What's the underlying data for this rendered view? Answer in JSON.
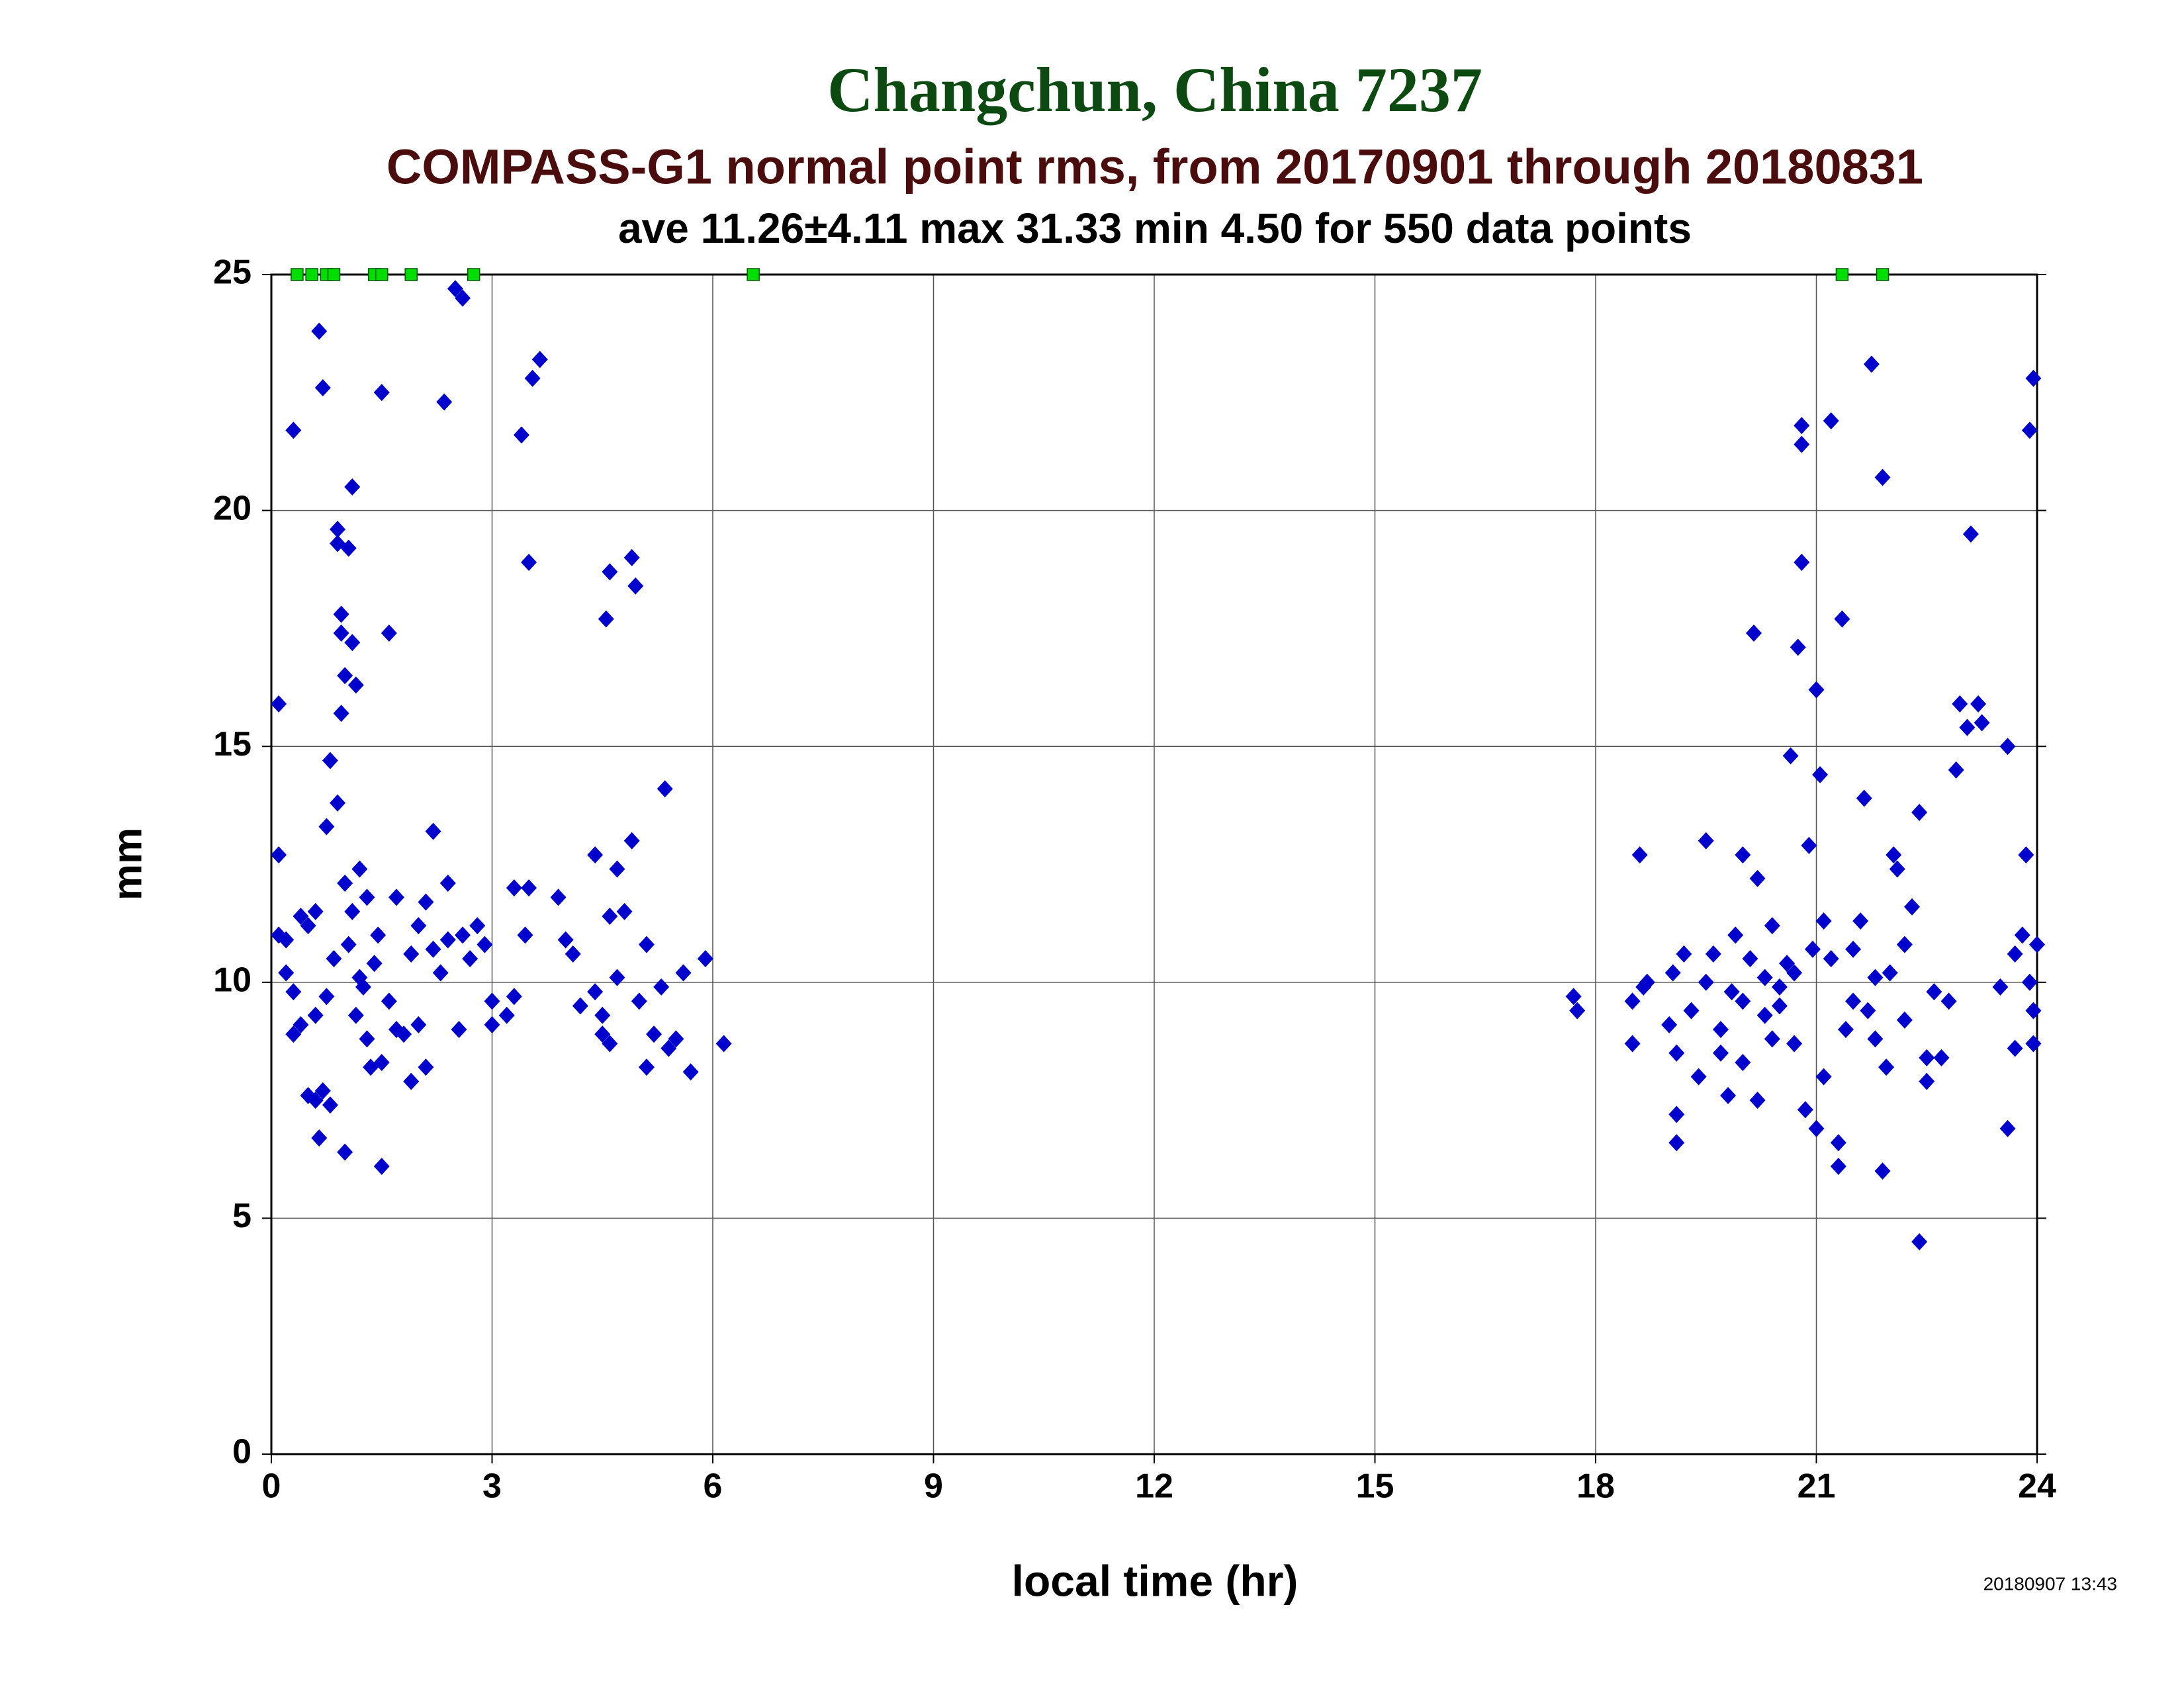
{
  "chart_data": {
    "type": "scatter",
    "title": "Changchun, China 7237",
    "subtitle": "COMPASS-G1 normal point rms, from 20170901 through 20180831",
    "stats": "ave 11.26±4.11 max 31.33 min 4.50 for 550 data points",
    "xlabel": "local time (hr)",
    "ylabel": "mm",
    "timestamp": "20180907 13:43",
    "xlim": [
      0,
      24
    ],
    "xticks": [
      0,
      3,
      6,
      9,
      12,
      15,
      18,
      21,
      24
    ],
    "ylim": [
      0,
      25
    ],
    "yticks": [
      0,
      5,
      10,
      15,
      20,
      25
    ],
    "grid": true,
    "series": [
      {
        "color": "#0000cc",
        "marker": "diamond",
        "x": [
          0.1,
          0.1,
          0.1,
          0.2,
          0.2,
          0.3,
          0.3,
          0.3,
          0.4,
          0.4,
          0.5,
          0.5,
          0.6,
          0.6,
          0.6,
          0.65,
          0.65,
          0.7,
          0.7,
          0.75,
          0.75,
          0.8,
          0.8,
          0.85,
          0.9,
          0.9,
          0.9,
          0.95,
          0.95,
          0.95,
          1.0,
          1.0,
          1.0,
          1.05,
          1.05,
          1.1,
          1.1,
          1.1,
          1.15,
          1.15,
          1.2,
          1.2,
          1.25,
          1.3,
          1.3,
          1.35,
          1.4,
          1.45,
          1.5,
          1.5,
          1.5,
          1.6,
          1.6,
          1.7,
          1.7,
          1.8,
          1.9,
          1.9,
          2.0,
          2.0,
          2.1,
          2.1,
          2.2,
          2.2,
          2.3,
          2.35,
          2.4,
          2.4,
          2.5,
          2.55,
          2.6,
          2.6,
          2.7,
          2.8,
          2.9,
          3.0,
          3.0,
          3.2,
          3.3,
          3.4,
          3.45,
          3.5,
          3.5,
          3.55,
          3.65,
          3.3,
          3.9,
          4.0,
          4.1,
          4.2,
          4.4,
          4.4,
          4.5,
          4.55,
          4.6,
          4.6,
          4.7,
          4.7,
          4.8,
          4.9,
          4.9,
          4.95,
          5.0,
          5.1,
          5.1,
          5.3,
          5.35,
          5.4,
          5.5,
          5.6,
          5.7,
          5.9,
          6.15,
          4.5,
          4.6,
          5.2,
          17.7,
          17.75,
          18.5,
          18.5,
          18.6,
          18.65,
          18.7,
          19.0,
          19.05,
          19.1,
          19.1,
          19.1,
          19.2,
          19.3,
          19.4,
          19.5,
          19.6,
          19.7,
          19.8,
          19.85,
          19.9,
          20.0,
          20.0,
          20.1,
          20.15,
          20.2,
          20.2,
          20.3,
          20.4,
          20.4,
          20.5,
          20.6,
          20.65,
          20.7,
          20.75,
          20.8,
          20.8,
          20.8,
          20.85,
          20.9,
          20.95,
          21.0,
          21.0,
          21.05,
          21.1,
          21.1,
          21.2,
          21.3,
          21.3,
          21.35,
          21.4,
          21.5,
          21.6,
          21.65,
          21.7,
          21.75,
          21.8,
          21.9,
          21.9,
          21.95,
          22.0,
          22.05,
          22.1,
          22.2,
          22.3,
          22.4,
          22.4,
          22.5,
          22.5,
          22.6,
          22.7,
          22.8,
          22.9,
          22.95,
          23.05,
          23.1,
          23.2,
          23.25,
          23.5,
          23.6,
          23.6,
          23.7,
          23.7,
          23.8,
          23.85,
          23.9,
          23.9,
          23.95,
          23.95,
          24.0,
          23.95,
          19.5,
          19.7,
          20.3,
          20.5,
          20.7,
          21.5,
          21.8,
          22.2,
          21.2,
          20.0
        ],
        "values": [
          15.9,
          12.7,
          11,
          10.9,
          10.2,
          9.8,
          8.9,
          21.7,
          11.4,
          9.1,
          11.2,
          7.6,
          9.3,
          11.5,
          7.5,
          23.8,
          6.7,
          22.6,
          7.7,
          13.3,
          9.7,
          14.7,
          7.4,
          10.5,
          13.8,
          19.6,
          19.3,
          17.8,
          17.4,
          15.7,
          12.1,
          6.4,
          16.5,
          19.2,
          10.8,
          20.5,
          17.2,
          11.5,
          16.3,
          9.3,
          12.4,
          10.1,
          9.9,
          11.8,
          8.8,
          8.2,
          10.4,
          11.0,
          22.5,
          6.1,
          8.3,
          17.4,
          9.6,
          11.8,
          9.0,
          8.9,
          7.9,
          10.6,
          11.2,
          9.1,
          11.7,
          8.2,
          13.2,
          10.7,
          10.2,
          22.3,
          12.1,
          10.9,
          24.7,
          9.0,
          24.5,
          11.0,
          10.5,
          11.2,
          10.8,
          9.6,
          9.1,
          9.3,
          12.0,
          21.6,
          11.0,
          18.9,
          12.0,
          22.8,
          23.2,
          9.7,
          11.8,
          10.9,
          10.6,
          9.5,
          12.7,
          9.8,
          9.3,
          17.7,
          18.7,
          11.4,
          12.4,
          10.1,
          11.5,
          13.0,
          19.0,
          18.4,
          9.6,
          8.2,
          10.8,
          9.9,
          14.1,
          8.6,
          8.8,
          10.2,
          8.1,
          10.5,
          8.7,
          8.9,
          8.7,
          8.9,
          9.7,
          9.4,
          9.6,
          8.7,
          12.7,
          9.9,
          10.0,
          9.1,
          10.2,
          7.2,
          6.6,
          8.5,
          10.6,
          9.4,
          8.0,
          13.0,
          10.6,
          8.5,
          7.6,
          9.8,
          11.0,
          8.3,
          12.7,
          10.5,
          17.4,
          7.5,
          12.2,
          9.3,
          11.2,
          8.8,
          9.9,
          10.4,
          14.8,
          8.7,
          17.1,
          21.4,
          18.9,
          21.8,
          7.3,
          12.9,
          10.7,
          16.2,
          6.9,
          14.4,
          8.0,
          11.3,
          21.9,
          6.6,
          6.1,
          17.7,
          9.0,
          10.7,
          11.3,
          13.9,
          9.4,
          23.1,
          8.8,
          20.7,
          6.0,
          8.2,
          10.2,
          12.7,
          12.4,
          9.2,
          11.6,
          13.6,
          4.5,
          8.4,
          7.9,
          9.8,
          8.4,
          9.6,
          14.5,
          15.9,
          15.4,
          19.5,
          15.9,
          15.5,
          9.9,
          6.9,
          15.0,
          10.6,
          8.6,
          11.0,
          12.7,
          10.0,
          21.7,
          22.8,
          8.7,
          10.8,
          9.4,
          10.0,
          9.0,
          10.1,
          9.5,
          10.2,
          9.6,
          10.1,
          10.8,
          10.5,
          9.6
        ]
      },
      {
        "color": "#00dd00",
        "marker": "square",
        "x": [
          0.35,
          0.55,
          0.75,
          0.85,
          1.4,
          1.5,
          1.9,
          2.75,
          6.55,
          21.35,
          21.9
        ],
        "values": [
          25,
          25,
          25,
          25,
          25,
          25,
          25,
          25,
          25,
          25,
          25
        ]
      }
    ]
  }
}
